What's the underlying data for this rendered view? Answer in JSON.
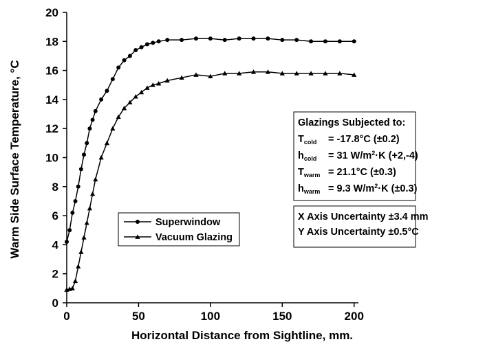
{
  "chart_data": {
    "type": "line",
    "xlabel": "Horizontal Distance from Sightline, mm.",
    "ylabel": "Warm Side Surface Temperature, °C",
    "x": [
      0,
      2,
      4,
      6,
      8,
      10,
      12,
      14,
      16,
      18,
      20,
      24,
      28,
      32,
      36,
      40,
      44,
      48,
      52,
      56,
      60,
      64,
      70,
      80,
      90,
      100,
      110,
      120,
      130,
      140,
      150,
      160,
      170,
      180,
      190,
      200
    ],
    "series": [
      {
        "name": "Superwindow",
        "color": "#000000",
        "marker": "circle",
        "values": [
          4.2,
          5,
          6.2,
          7,
          8,
          9.2,
          10.2,
          11,
          12,
          12.6,
          13.2,
          14,
          14.6,
          15.4,
          16.2,
          16.7,
          17,
          17.4,
          17.6,
          17.8,
          17.9,
          18,
          18.1,
          18.1,
          18.2,
          18.2,
          18.1,
          18.2,
          18.2,
          18.2,
          18.1,
          18.1,
          18.0,
          18.0,
          18.0,
          18.0
        ]
      },
      {
        "name": "Vacuum Glazing",
        "color": "#000000",
        "marker": "triangle",
        "values": [
          0.9,
          0.95,
          1,
          1.5,
          2.5,
          3.5,
          4.5,
          5.5,
          6.5,
          7.5,
          8.5,
          10,
          11,
          12,
          12.8,
          13.4,
          13.8,
          14.2,
          14.5,
          14.8,
          15,
          15.1,
          15.3,
          15.5,
          15.7,
          15.6,
          15.8,
          15.8,
          15.9,
          15.9,
          15.8,
          15.8,
          15.8,
          15.8,
          15.8,
          15.7
        ]
      }
    ],
    "xlim": [
      0,
      203
    ],
    "xticks": [
      0,
      50,
      100,
      150,
      200
    ],
    "ylim": [
      0,
      20
    ],
    "yticks": [
      0,
      2,
      4,
      6,
      8,
      10,
      12,
      14,
      16,
      18,
      20
    ],
    "grid": false,
    "legend": "lower center",
    "annotations": [
      {
        "title": "Glazings Subjected to:",
        "lines": [
          [
            {
              "t": "T"
            },
            {
              "t": "cold",
              "pos": "sub"
            },
            {
              "t": "= -17.8°C (±0.2)"
            }
          ],
          [
            {
              "t": "h"
            },
            {
              "t": "cold",
              "pos": "sub"
            },
            {
              "t": "= 31 W/m"
            },
            {
              "t": "2",
              "pos": "super"
            },
            {
              "t": "·K (+2,-4)"
            }
          ],
          [
            {
              "t": "T"
            },
            {
              "t": "warm",
              "pos": "sub"
            },
            {
              "t": "= 21.1°C (±0.3)"
            }
          ],
          [
            {
              "t": "h"
            },
            {
              "t": "warm",
              "pos": "sub"
            },
            {
              "t": "= 9.3 W/m"
            },
            {
              "t": "2",
              "pos": "super"
            },
            {
              "t": "·K (±0.3)"
            }
          ]
        ]
      },
      {
        "lines": [
          [
            {
              "t": "X Axis Uncertainty ±3.4 mm"
            }
          ],
          [
            {
              "t": "Y Axis Uncertainty ±0.5°C"
            }
          ]
        ]
      }
    ]
  }
}
